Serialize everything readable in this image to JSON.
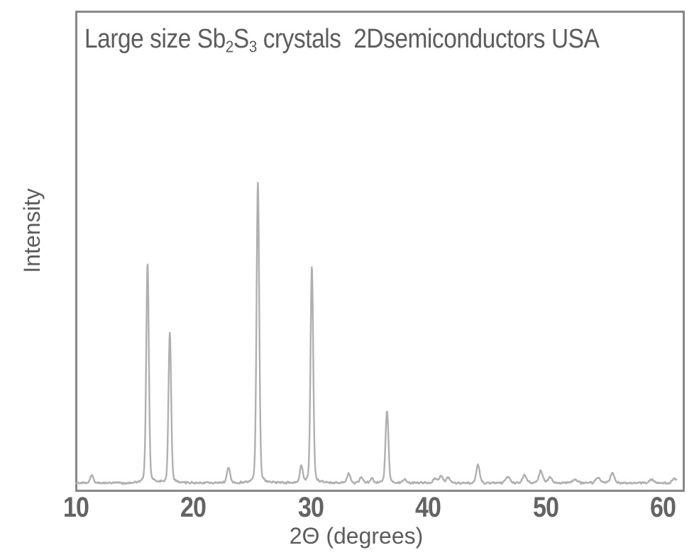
{
  "title": {
    "p1": "Large size Sb",
    "s1": "2",
    "p2": "S",
    "s2": "3",
    "p3": " crystals  2Dsemiconductors USA"
  },
  "axes": {
    "x_label": "2Θ (degrees)",
    "y_label": "Intensity",
    "x_ticks": [
      10,
      20,
      30,
      40,
      50,
      60
    ]
  },
  "colors": {
    "trace": "#b0b0b0",
    "frame": "#878787",
    "text": "#5c5c5c",
    "tick_text": "#636363",
    "background": "#ffffff"
  },
  "chart_data": {
    "type": "line",
    "title": "Large size Sb2S3 crystals  2Dsemiconductors USA",
    "xlabel": "2Θ (degrees)",
    "ylabel": "Intensity",
    "xlim": [
      9.94,
      61.87
    ],
    "ylim": [
      0,
      105
    ],
    "x_ticks": [
      10,
      20,
      30,
      40,
      50,
      60
    ],
    "grid": false,
    "legend": false,
    "x_start": 10.02,
    "x_end": 61.2,
    "sample_step_deg": 0.03,
    "baseline_intensity": 0.3,
    "noise_amplitude": 1.0,
    "peaks": [
      {
        "two_theta": 11.35,
        "intensity": 2.6,
        "sigma_deg": 0.13
      },
      {
        "two_theta": 16.1,
        "intensity": 73.0,
        "sigma_deg": 0.11
      },
      {
        "two_theta": 18.0,
        "intensity": 50.0,
        "sigma_deg": 0.11
      },
      {
        "two_theta": 23.0,
        "intensity": 5.0,
        "sigma_deg": 0.13
      },
      {
        "two_theta": 25.5,
        "intensity": 100.0,
        "sigma_deg": 0.11
      },
      {
        "two_theta": 29.2,
        "intensity": 5.7,
        "sigma_deg": 0.12
      },
      {
        "two_theta": 30.1,
        "intensity": 72.0,
        "sigma_deg": 0.11
      },
      {
        "two_theta": 33.25,
        "intensity": 3.3,
        "sigma_deg": 0.14
      },
      {
        "two_theta": 34.3,
        "intensity": 1.9,
        "sigma_deg": 0.14
      },
      {
        "two_theta": 35.2,
        "intensity": 1.4,
        "sigma_deg": 0.14
      },
      {
        "two_theta": 36.5,
        "intensity": 24.0,
        "sigma_deg": 0.12
      },
      {
        "two_theta": 38.0,
        "intensity": 1.4,
        "sigma_deg": 0.15
      },
      {
        "two_theta": 40.6,
        "intensity": 1.7,
        "sigma_deg": 0.16
      },
      {
        "two_theta": 41.1,
        "intensity": 2.4,
        "sigma_deg": 0.15
      },
      {
        "two_theta": 41.7,
        "intensity": 1.9,
        "sigma_deg": 0.15
      },
      {
        "two_theta": 44.25,
        "intensity": 6.1,
        "sigma_deg": 0.14
      },
      {
        "two_theta": 46.8,
        "intensity": 2.1,
        "sigma_deg": 0.18
      },
      {
        "two_theta": 48.2,
        "intensity": 2.6,
        "sigma_deg": 0.17
      },
      {
        "two_theta": 49.6,
        "intensity": 4.0,
        "sigma_deg": 0.16
      },
      {
        "two_theta": 50.4,
        "intensity": 1.9,
        "sigma_deg": 0.16
      },
      {
        "two_theta": 52.5,
        "intensity": 1.2,
        "sigma_deg": 0.2
      },
      {
        "two_theta": 54.5,
        "intensity": 1.9,
        "sigma_deg": 0.18
      },
      {
        "two_theta": 55.7,
        "intensity": 3.3,
        "sigma_deg": 0.16
      },
      {
        "two_theta": 59.0,
        "intensity": 1.2,
        "sigma_deg": 0.2
      },
      {
        "two_theta": 61.0,
        "intensity": 1.6,
        "sigma_deg": 0.18
      }
    ]
  }
}
